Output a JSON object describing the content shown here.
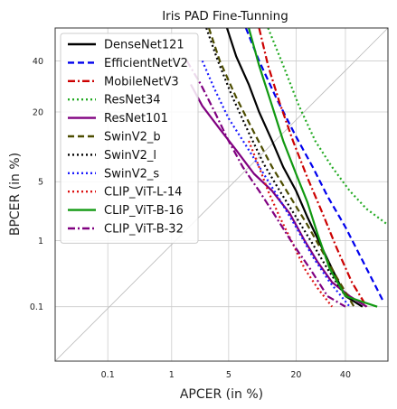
{
  "chart_data": {
    "type": "line",
    "title": "Iris PAD Fine-Tunning",
    "xlabel": "APCER (in %)",
    "ylabel": "BPCER (in %)",
    "xscale": "probit",
    "yscale": "probit",
    "xlim": [
      0.01,
      60
    ],
    "ylim": [
      0.01,
      55
    ],
    "xticks": [
      0.1,
      1,
      5,
      20,
      40
    ],
    "xtick_labels": [
      "0.1",
      "1",
      "5",
      "20",
      "40"
    ],
    "yticks": [
      0.1,
      1,
      5,
      20,
      40
    ],
    "ytick_labels": [
      "0.1",
      "1",
      "5",
      "20",
      "40"
    ],
    "grid": true,
    "legend_position": "top-left",
    "series": [
      {
        "name": "DenseNet121",
        "color": "#000000",
        "dash": "solid",
        "x": [
          4.8,
          6,
          8,
          10,
          13,
          16,
          20,
          24,
          29,
          34,
          40,
          48
        ],
        "y": [
          55,
          42,
          30,
          20,
          12,
          7,
          4,
          2,
          0.9,
          0.4,
          0.15,
          0.1
        ]
      },
      {
        "name": "EfficientNetV2",
        "color": "#0000ee",
        "dash": "dashed",
        "x": [
          7.5,
          10,
          14,
          20,
          26,
          32,
          40,
          50,
          58
        ],
        "y": [
          55,
          40,
          25,
          13,
          7,
          3.5,
          1.5,
          0.4,
          0.12
        ]
      },
      {
        "name": "MobileNetV3",
        "color": "#cc0000",
        "dash": "dashdot",
        "x": [
          10,
          12,
          15,
          19,
          24,
          30,
          36,
          43,
          50
        ],
        "y": [
          55,
          38,
          23,
          12,
          5.5,
          2.2,
          0.8,
          0.25,
          0.1
        ]
      },
      {
        "name": "ResNet34",
        "color": "#22aa22",
        "dash": "dotted",
        "x": [
          12,
          16,
          21,
          27,
          34,
          42,
          50,
          60
        ],
        "y": [
          55,
          38,
          22,
          12,
          7,
          4,
          2.5,
          1.6
        ]
      },
      {
        "name": "ResNet101",
        "color": "#800080",
        "dash": "solid",
        "x": [
          1.8,
          2.5,
          4,
          6,
          9,
          13,
          18,
          23,
          28,
          34,
          42,
          50
        ],
        "y": [
          30,
          22,
          15,
          10,
          6,
          4,
          2.2,
          1.0,
          0.5,
          0.25,
          0.15,
          0.1
        ]
      },
      {
        "name": "SwinV2_b",
        "color": "#4d4d00",
        "dash": "dashed",
        "x": [
          3,
          4,
          6,
          9,
          13,
          18,
          24,
          30,
          36,
          44
        ],
        "y": [
          55,
          40,
          25,
          14,
          7,
          3.5,
          1.6,
          0.7,
          0.3,
          0.1
        ]
      },
      {
        "name": "SwinV2_l",
        "color": "#000000",
        "dash": "dotted",
        "x": [
          2.8,
          3.8,
          5.5,
          8,
          11,
          15,
          20,
          26,
          32,
          40
        ],
        "y": [
          55,
          40,
          25,
          14,
          7.5,
          4,
          2,
          0.9,
          0.4,
          0.15
        ]
      },
      {
        "name": "SwinV2_s",
        "color": "#1a1aff",
        "dash": "dotted",
        "x": [
          2.5,
          3.5,
          5,
          7.5,
          11,
          15,
          20,
          26,
          33,
          42
        ],
        "y": [
          40,
          28,
          18,
          11,
          6,
          3.2,
          1.5,
          0.6,
          0.25,
          0.1
        ]
      },
      {
        "name": "CLIP_ViT-L-14",
        "color": "#dd1111",
        "dash": "dotted",
        "x": [
          8,
          10,
          12,
          15,
          19,
          23,
          28,
          34
        ],
        "y": [
          12,
          7,
          4,
          2,
          0.9,
          0.4,
          0.2,
          0.1
        ]
      },
      {
        "name": "CLIP_ViT-B-16",
        "color": "#119911",
        "dash": "solid",
        "x": [
          8,
          10,
          13,
          16,
          20,
          24,
          28,
          33,
          40,
          55
        ],
        "y": [
          55,
          38,
          22,
          12,
          6,
          3,
          1.2,
          0.4,
          0.15,
          0.1
        ]
      },
      {
        "name": "CLIP_ViT-B-32",
        "color": "#800080",
        "dash": "dashdot",
        "x": [
          1.6,
          2.4,
          3.5,
          5,
          7,
          10,
          14,
          19,
          25,
          32,
          40
        ],
        "y": [
          40,
          30,
          20,
          12,
          7,
          4,
          2,
          0.9,
          0.4,
          0.15,
          0.1
        ]
      }
    ]
  }
}
